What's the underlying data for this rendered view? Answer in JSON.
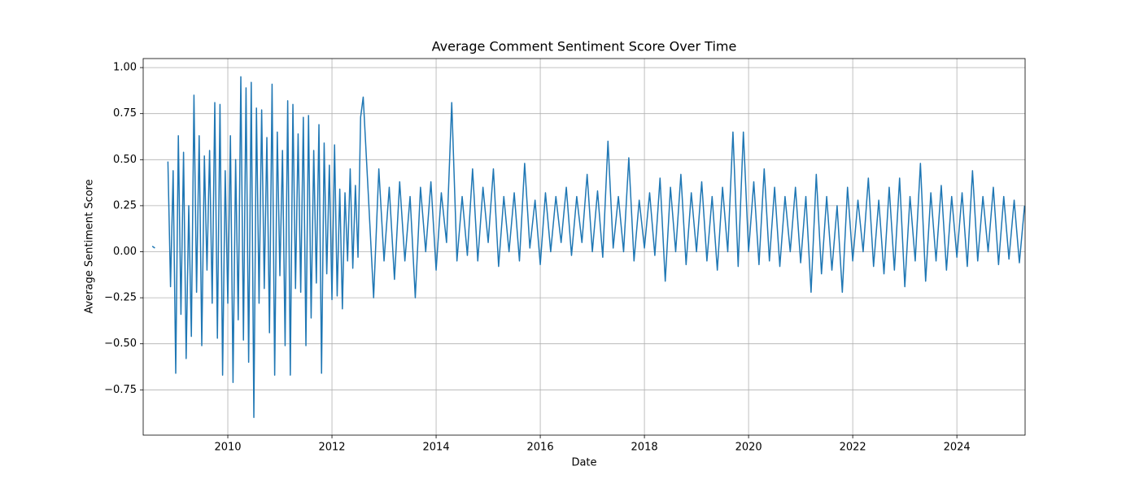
{
  "chart_data": {
    "type": "line",
    "title": "Average Comment Sentiment Score Over Time",
    "xlabel": "Date",
    "ylabel": "Average Sentiment Score",
    "xlim": [
      2008.375,
      2025.31
    ],
    "xticks": [
      2010,
      2012,
      2014,
      2016,
      2018,
      2020,
      2022,
      2024
    ],
    "ylim": [
      -0.996,
      1.049
    ],
    "yticks": [
      {
        "value": -0.75,
        "label": "−0.75"
      },
      {
        "value": -0.5,
        "label": "−0.50"
      },
      {
        "value": -0.25,
        "label": "−0.25"
      },
      {
        "value": 0,
        "label": "0.00"
      },
      {
        "value": 0.25,
        "label": "0.25"
      },
      {
        "value": 0.5,
        "label": "0.50"
      },
      {
        "value": 0.75,
        "label": "0.75"
      },
      {
        "value": 1,
        "label": "1.00"
      }
    ],
    "grid": true,
    "x": [
      2008.55,
      2008.6,
      2008.7,
      2008.85,
      2008.9,
      2008.95,
      2009.0,
      2009.05,
      2009.1,
      2009.15,
      2009.2,
      2009.25,
      2009.3,
      2009.35,
      2009.4,
      2009.45,
      2009.5,
      2009.55,
      2009.6,
      2009.65,
      2009.7,
      2009.75,
      2009.8,
      2009.85,
      2009.9,
      2009.95,
      2010.0,
      2010.05,
      2010.1,
      2010.15,
      2010.2,
      2010.25,
      2010.3,
      2010.35,
      2010.4,
      2010.45,
      2010.5,
      2010.55,
      2010.6,
      2010.65,
      2010.7,
      2010.75,
      2010.8,
      2010.85,
      2010.9,
      2010.95,
      2011.0,
      2011.05,
      2011.1,
      2011.15,
      2011.2,
      2011.25,
      2011.3,
      2011.35,
      2011.4,
      2011.45,
      2011.5,
      2011.55,
      2011.6,
      2011.65,
      2011.7,
      2011.75,
      2011.8,
      2011.85,
      2011.9,
      2011.95,
      2012.0,
      2012.05,
      2012.1,
      2012.15,
      2012.2,
      2012.25,
      2012.3,
      2012.35,
      2012.4,
      2012.45,
      2012.5,
      2012.55,
      2012.6,
      2012.7,
      2012.8,
      2012.9,
      2013.0,
      2013.1,
      2013.2,
      2013.3,
      2013.4,
      2013.5,
      2013.6,
      2013.7,
      2013.8,
      2013.9,
      2014.0,
      2014.1,
      2014.2,
      2014.3,
      2014.4,
      2014.5,
      2014.6,
      2014.7,
      2014.8,
      2014.9,
      2015.0,
      2015.1,
      2015.2,
      2015.3,
      2015.4,
      2015.5,
      2015.6,
      2015.7,
      2015.8,
      2015.9,
      2016.0,
      2016.1,
      2016.2,
      2016.3,
      2016.4,
      2016.5,
      2016.6,
      2016.7,
      2016.8,
      2016.9,
      2017.0,
      2017.1,
      2017.2,
      2017.3,
      2017.4,
      2017.5,
      2017.6,
      2017.7,
      2017.8,
      2017.9,
      2018.0,
      2018.1,
      2018.2,
      2018.3,
      2018.4,
      2018.5,
      2018.6,
      2018.7,
      2018.8,
      2018.9,
      2019.0,
      2019.1,
      2019.2,
      2019.3,
      2019.4,
      2019.5,
      2019.6,
      2019.7,
      2019.8,
      2019.9,
      2020.0,
      2020.1,
      2020.2,
      2020.3,
      2020.4,
      2020.5,
      2020.6,
      2020.7,
      2020.8,
      2020.9,
      2021.0,
      2021.1,
      2021.2,
      2021.3,
      2021.4,
      2021.5,
      2021.6,
      2021.7,
      2021.8,
      2021.9,
      2022.0,
      2022.1,
      2022.2,
      2022.3,
      2022.4,
      2022.5,
      2022.6,
      2022.7,
      2022.8,
      2022.9,
      2023.0,
      2023.1,
      2023.2,
      2023.3,
      2023.4,
      2023.5,
      2023.6,
      2023.7,
      2023.8,
      2023.9,
      2024.0,
      2024.1,
      2024.2,
      2024.3,
      2024.4,
      2024.5,
      2024.6,
      2024.7,
      2024.8,
      2024.9,
      2025.0,
      2025.1,
      2025.2,
      2025.3
    ],
    "series": [
      {
        "name": "Average Sentiment Score",
        "color": "#1f77b4",
        "values": [
          0.03,
          0.02,
          null,
          0.49,
          -0.19,
          0.44,
          -0.66,
          0.63,
          -0.34,
          0.54,
          -0.58,
          0.25,
          -0.46,
          0.85,
          -0.22,
          0.63,
          -0.51,
          0.52,
          -0.1,
          0.55,
          -0.28,
          0.81,
          -0.47,
          0.8,
          -0.67,
          0.44,
          -0.28,
          0.63,
          -0.71,
          0.5,
          -0.37,
          0.95,
          -0.48,
          0.89,
          -0.6,
          0.92,
          -0.9,
          0.78,
          -0.28,
          0.77,
          -0.2,
          0.62,
          -0.44,
          0.91,
          -0.67,
          0.65,
          -0.13,
          0.55,
          -0.51,
          0.82,
          -0.67,
          0.8,
          -0.2,
          0.64,
          -0.22,
          0.73,
          -0.51,
          0.74,
          -0.36,
          0.55,
          -0.17,
          0.69,
          -0.66,
          0.59,
          -0.12,
          0.47,
          -0.26,
          0.58,
          -0.24,
          0.34,
          -0.31,
          0.32,
          -0.05,
          0.45,
          -0.09,
          0.36,
          -0.03,
          0.73,
          0.84,
          0.3,
          -0.25,
          0.45,
          -0.05,
          0.35,
          -0.15,
          0.38,
          -0.05,
          0.3,
          -0.25,
          0.35,
          0.0,
          0.38,
          -0.1,
          0.32,
          0.05,
          0.81,
          -0.05,
          0.3,
          -0.02,
          0.45,
          -0.05,
          0.35,
          0.05,
          0.45,
          -0.08,
          0.3,
          0.0,
          0.32,
          -0.05,
          0.48,
          0.02,
          0.28,
          -0.07,
          0.32,
          0.0,
          0.3,
          0.05,
          0.35,
          -0.02,
          0.3,
          0.05,
          0.42,
          0.0,
          0.33,
          -0.03,
          0.6,
          0.02,
          0.3,
          0.0,
          0.51,
          -0.05,
          0.28,
          0.02,
          0.32,
          -0.02,
          0.4,
          -0.16,
          0.35,
          0.0,
          0.42,
          -0.07,
          0.32,
          0.0,
          0.38,
          -0.05,
          0.3,
          -0.1,
          0.35,
          0.0,
          0.65,
          -0.08,
          0.65,
          0.0,
          0.38,
          -0.07,
          0.45,
          -0.05,
          0.35,
          -0.08,
          0.3,
          0.0,
          0.35,
          -0.06,
          0.3,
          -0.22,
          0.42,
          -0.12,
          0.3,
          -0.1,
          0.25,
          -0.22,
          0.35,
          -0.05,
          0.28,
          0.0,
          0.4,
          -0.08,
          0.28,
          -0.12,
          0.35,
          -0.1,
          0.4,
          -0.19,
          0.3,
          -0.05,
          0.48,
          -0.16,
          0.32,
          -0.05,
          0.36,
          -0.1,
          0.3,
          -0.03,
          0.32,
          -0.08,
          0.44,
          -0.05,
          0.3,
          0.0,
          0.35,
          -0.07,
          0.3,
          -0.04,
          0.28,
          -0.06,
          0.25
        ]
      }
    ]
  }
}
